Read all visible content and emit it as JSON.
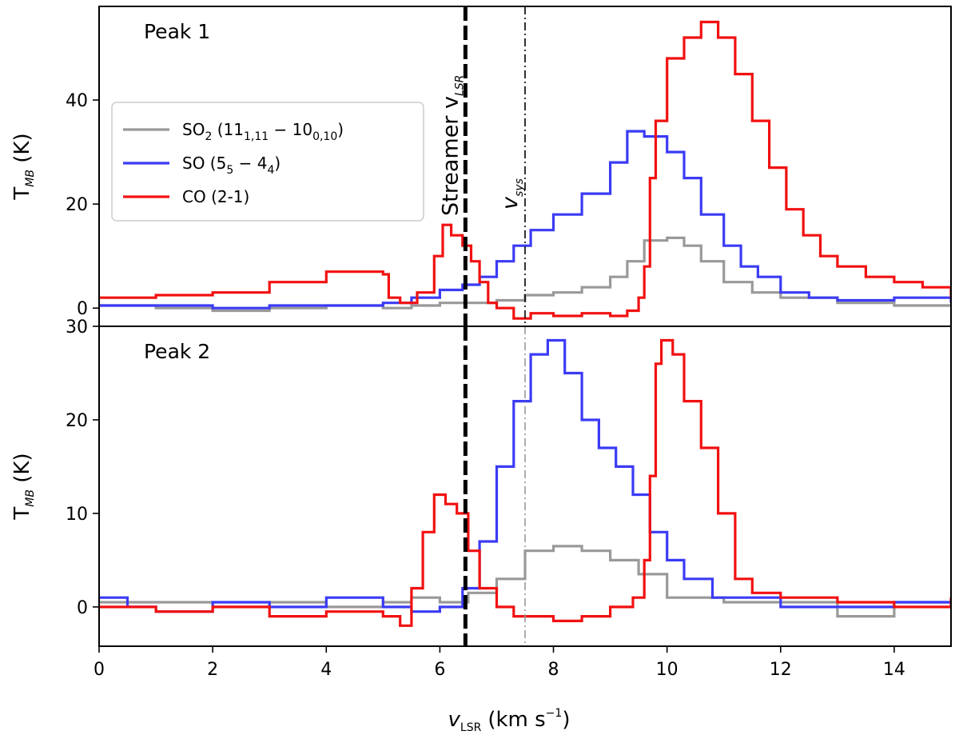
{
  "chart_data": {
    "type": "line",
    "xlabel": "v",
    "xlabel_sub": "LSR",
    "xlabel_unit": "(km s",
    "xlabel_unit_sup": "−1",
    "xlabel_unit_end": ")",
    "xlim": [
      0,
      15
    ],
    "xticks": [
      "0",
      "2",
      "4",
      "6",
      "8",
      "10",
      "12",
      "14"
    ],
    "xtick_values": [
      0,
      2,
      4,
      6,
      8,
      10,
      12,
      14
    ],
    "reference_lines": {
      "streamer_vlsr": 6.45,
      "streamer_label": "Streamer v",
      "streamer_label_sub": "LSR",
      "vsys": 7.5,
      "vsys_label": "v",
      "vsys_label_sub": "sys"
    },
    "legend": {
      "placement": "upper-left",
      "entries": [
        {
          "key": "so2",
          "color": "#999999",
          "parts": [
            {
              "t": "SO"
            },
            {
              "t": "2",
              "sub": true
            },
            {
              "t": " (11"
            },
            {
              "t": "1,11",
              "sub": true
            },
            {
              "t": " − 10"
            },
            {
              "t": "0,10",
              "sub": true
            },
            {
              "t": ")"
            }
          ]
        },
        {
          "key": "so",
          "color": "#3b3bf5",
          "parts": [
            {
              "t": "SO (5"
            },
            {
              "t": "5",
              "sub": true
            },
            {
              "t": " − 4"
            },
            {
              "t": "4",
              "sub": true
            },
            {
              "t": ")"
            }
          ]
        },
        {
          "key": "co",
          "color": "#f21010",
          "parts": [
            {
              "t": "CO (2-1)"
            }
          ]
        }
      ]
    },
    "panels": [
      {
        "label": "Peak 1",
        "ylabel": "T",
        "ylabel_sub": "MB",
        "ylabel_unit": " (K)",
        "ylim": [
          -3.5,
          58
        ],
        "yticks": [
          "0",
          "20",
          "40"
        ],
        "ytick_values": [
          0,
          20,
          40
        ],
        "series": [
          {
            "key": "so2",
            "color": "#999999",
            "points": [
              [
                0,
                0.5
              ],
              [
                1,
                0
              ],
              [
                2,
                -0.5
              ],
              [
                3,
                0
              ],
              [
                4,
                0.5
              ],
              [
                5,
                0
              ],
              [
                5.5,
                0.5
              ],
              [
                6,
                1
              ],
              [
                6.5,
                1
              ],
              [
                7,
                1.5
              ],
              [
                7.5,
                2.5
              ],
              [
                8,
                3
              ],
              [
                8.5,
                4
              ],
              [
                9,
                6
              ],
              [
                9.3,
                9
              ],
              [
                9.6,
                13
              ],
              [
                10,
                13.5
              ],
              [
                10.3,
                12
              ],
              [
                10.6,
                9
              ],
              [
                11,
                5
              ],
              [
                11.5,
                3
              ],
              [
                12,
                2
              ],
              [
                13,
                1
              ],
              [
                14,
                0.5
              ],
              [
                15,
                0.5
              ]
            ]
          },
          {
            "key": "so",
            "color": "#3b3bf5",
            "points": [
              [
                0,
                0.5
              ],
              [
                1,
                0.5
              ],
              [
                2,
                0
              ],
              [
                3,
                0.5
              ],
              [
                4,
                0.5
              ],
              [
                5,
                1
              ],
              [
                5.5,
                2
              ],
              [
                6,
                3.5
              ],
              [
                6.4,
                4.5
              ],
              [
                6.7,
                6
              ],
              [
                7,
                9
              ],
              [
                7.3,
                12
              ],
              [
                7.6,
                15
              ],
              [
                8,
                18
              ],
              [
                8.5,
                22
              ],
              [
                9,
                28
              ],
              [
                9.3,
                34
              ],
              [
                9.6,
                33
              ],
              [
                10,
                30
              ],
              [
                10.3,
                25
              ],
              [
                10.6,
                18
              ],
              [
                11,
                12
              ],
              [
                11.3,
                8
              ],
              [
                11.6,
                6
              ],
              [
                12,
                3
              ],
              [
                12.5,
                2
              ],
              [
                13,
                1.5
              ],
              [
                14,
                2
              ],
              [
                15,
                1
              ]
            ]
          },
          {
            "key": "co",
            "color": "#f21010",
            "points": [
              [
                0,
                2
              ],
              [
                0.5,
                2
              ],
              [
                1,
                2.5
              ],
              [
                2,
                3
              ],
              [
                3,
                5
              ],
              [
                4,
                7
              ],
              [
                4.5,
                7
              ],
              [
                5,
                6.5
              ],
              [
                5.1,
                2
              ],
              [
                5.3,
                1
              ],
              [
                5.6,
                3
              ],
              [
                5.9,
                10
              ],
              [
                6.05,
                16
              ],
              [
                6.2,
                14
              ],
              [
                6.4,
                12
              ],
              [
                6.55,
                9
              ],
              [
                6.7,
                5
              ],
              [
                6.85,
                1
              ],
              [
                7,
                0
              ],
              [
                7.3,
                -2
              ],
              [
                7.6,
                -1
              ],
              [
                8,
                -1.5
              ],
              [
                8.5,
                -1
              ],
              [
                9,
                -1.5
              ],
              [
                9.3,
                -0.5
              ],
              [
                9.5,
                2
              ],
              [
                9.6,
                8
              ],
              [
                9.7,
                25
              ],
              [
                9.8,
                36
              ],
              [
                10,
                48
              ],
              [
                10.3,
                52
              ],
              [
                10.6,
                55
              ],
              [
                10.9,
                52
              ],
              [
                11.2,
                45
              ],
              [
                11.5,
                36
              ],
              [
                11.8,
                27
              ],
              [
                12.1,
                19
              ],
              [
                12.4,
                14
              ],
              [
                12.7,
                10
              ],
              [
                13,
                8
              ],
              [
                13.5,
                6
              ],
              [
                14,
                5
              ],
              [
                14.5,
                4
              ],
              [
                15,
                2
              ]
            ]
          }
        ]
      },
      {
        "label": "Peak 2",
        "ylabel": "T",
        "ylabel_sub": "MB",
        "ylabel_unit": " (K)",
        "ylim": [
          -4.2,
          30
        ],
        "yticks": [
          "0",
          "10",
          "20",
          "30"
        ],
        "ytick_values": [
          0,
          10,
          20,
          30
        ],
        "series": [
          {
            "key": "so2",
            "color": "#999999",
            "points": [
              [
                0,
                0.5
              ],
              [
                1,
                0.5
              ],
              [
                2,
                0
              ],
              [
                3,
                0.5
              ],
              [
                4,
                0
              ],
              [
                5,
                0.5
              ],
              [
                5.5,
                1
              ],
              [
                6,
                0.5
              ],
              [
                6.5,
                1.5
              ],
              [
                7,
                3
              ],
              [
                7.5,
                6
              ],
              [
                8,
                6.5
              ],
              [
                8.5,
                6
              ],
              [
                9,
                5
              ],
              [
                9.5,
                3.5
              ],
              [
                10,
                1
              ],
              [
                11,
                0.5
              ],
              [
                12,
                0.5
              ],
              [
                13,
                -1
              ],
              [
                14,
                0.5
              ],
              [
                15,
                0.5
              ]
            ]
          },
          {
            "key": "so",
            "color": "#3b3bf5",
            "points": [
              [
                0,
                1
              ],
              [
                0.5,
                0
              ],
              [
                1,
                -0.5
              ],
              [
                2,
                0.5
              ],
              [
                3,
                0
              ],
              [
                4,
                1
              ],
              [
                5,
                0
              ],
              [
                5.5,
                -0.5
              ],
              [
                6,
                0
              ],
              [
                6.4,
                2
              ],
              [
                6.7,
                7
              ],
              [
                7,
                15
              ],
              [
                7.3,
                22
              ],
              [
                7.6,
                27
              ],
              [
                7.9,
                28.5
              ],
              [
                8.2,
                25
              ],
              [
                8.5,
                20
              ],
              [
                8.8,
                17
              ],
              [
                9.1,
                15
              ],
              [
                9.4,
                12
              ],
              [
                9.7,
                8
              ],
              [
                10,
                5
              ],
              [
                10.3,
                3
              ],
              [
                10.8,
                1
              ],
              [
                11.5,
                1
              ],
              [
                12,
                0
              ],
              [
                13,
                0
              ],
              [
                14,
                0.5
              ],
              [
                15,
                0
              ]
            ]
          },
          {
            "key": "co",
            "color": "#f21010",
            "points": [
              [
                0,
                0
              ],
              [
                1,
                -0.5
              ],
              [
                2,
                0
              ],
              [
                3,
                -1
              ],
              [
                4,
                -0.5
              ],
              [
                5,
                -1
              ],
              [
                5.3,
                -2
              ],
              [
                5.5,
                2
              ],
              [
                5.7,
                8
              ],
              [
                5.9,
                12
              ],
              [
                6.1,
                11
              ],
              [
                6.3,
                10
              ],
              [
                6.5,
                6
              ],
              [
                6.7,
                2
              ],
              [
                7,
                0
              ],
              [
                7.3,
                -1
              ],
              [
                7.6,
                -1
              ],
              [
                8,
                -1.5
              ],
              [
                8.5,
                -1
              ],
              [
                9,
                0
              ],
              [
                9.4,
                1
              ],
              [
                9.6,
                5
              ],
              [
                9.7,
                14
              ],
              [
                9.8,
                26
              ],
              [
                9.9,
                28.5
              ],
              [
                10.1,
                27
              ],
              [
                10.3,
                22
              ],
              [
                10.6,
                17
              ],
              [
                10.9,
                10
              ],
              [
                11.2,
                3
              ],
              [
                11.5,
                1.5
              ],
              [
                12,
                1
              ],
              [
                13,
                0.5
              ],
              [
                14,
                0
              ],
              [
                15,
                1
              ]
            ]
          }
        ]
      }
    ]
  }
}
